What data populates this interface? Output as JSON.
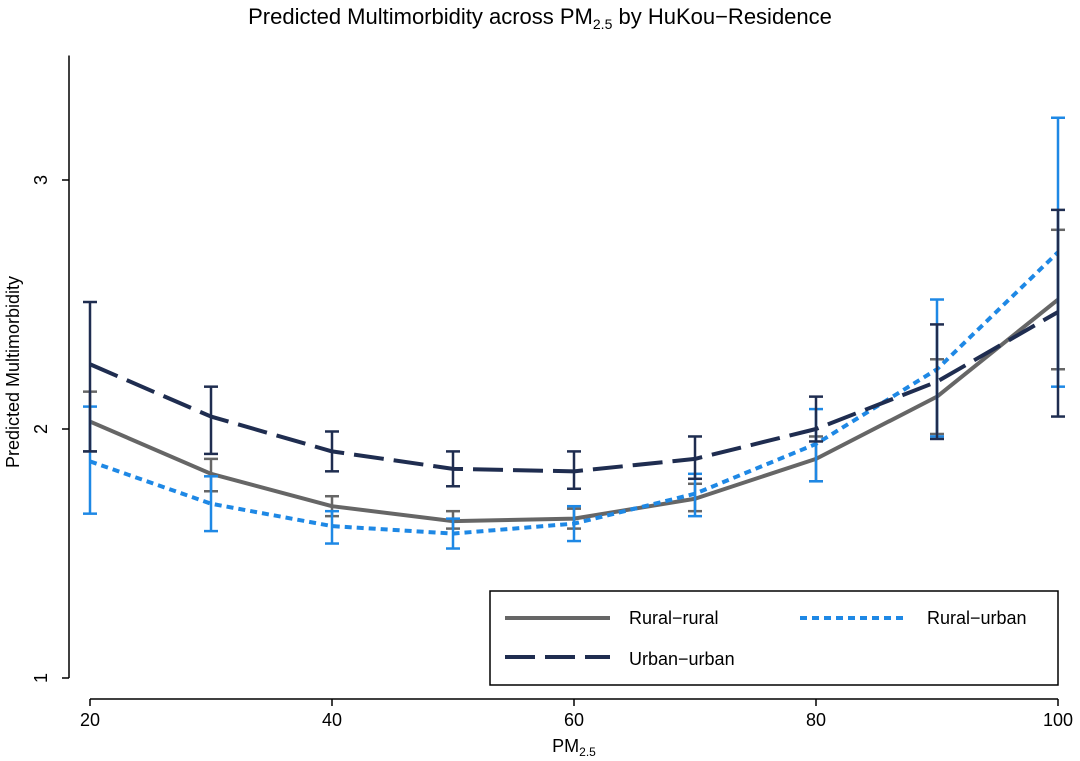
{
  "chart_data": {
    "type": "line",
    "title_main": "Predicted Multimorbidity across PM",
    "title_sub": "2.5",
    "title_tail": " by HuKou−Residence",
    "xlabel_main": "PM",
    "xlabel_sub": "2.5",
    "ylabel": "Predicted Multimorbidity",
    "xlim": [
      20,
      100
    ],
    "ylim": [
      1,
      3.5
    ],
    "x_ticks": [
      "20",
      "40",
      "60",
      "80",
      "100"
    ],
    "y_ticks": [
      "1",
      "2",
      "3"
    ],
    "x": [
      20,
      30,
      40,
      50,
      60,
      70,
      80,
      90,
      100
    ],
    "legend_position": "bottom-right",
    "series": [
      {
        "name": "Rural−rural",
        "color": "#666666",
        "style": "solid",
        "values": [
          2.03,
          1.82,
          1.69,
          1.63,
          1.64,
          1.72,
          1.88,
          2.13,
          2.52
        ],
        "lower": [
          1.91,
          1.75,
          1.65,
          1.6,
          1.6,
          1.67,
          1.79,
          1.98,
          2.24
        ],
        "upper": [
          2.15,
          1.88,
          1.73,
          1.67,
          1.68,
          1.78,
          1.97,
          2.28,
          2.8
        ]
      },
      {
        "name": "Rural−urban",
        "color": "#1E88E5",
        "style": "dotted",
        "values": [
          1.87,
          1.7,
          1.61,
          1.58,
          1.62,
          1.74,
          1.94,
          2.24,
          2.71
        ],
        "lower": [
          1.66,
          1.59,
          1.54,
          1.52,
          1.55,
          1.65,
          1.79,
          1.97,
          2.17
        ],
        "upper": [
          2.09,
          1.81,
          1.67,
          1.64,
          1.69,
          1.82,
          2.08,
          2.52,
          3.25
        ]
      },
      {
        "name": "Urban−urban",
        "color": "#1F2D50",
        "style": "dashed",
        "values": [
          2.26,
          2.05,
          1.91,
          1.84,
          1.83,
          1.88,
          2.0,
          2.19,
          2.47
        ],
        "lower": [
          1.91,
          1.9,
          1.83,
          1.77,
          1.76,
          1.8,
          1.95,
          1.96,
          2.05
        ],
        "upper": [
          2.51,
          2.17,
          1.99,
          1.91,
          1.91,
          1.97,
          2.13,
          2.42,
          2.88
        ]
      }
    ]
  }
}
